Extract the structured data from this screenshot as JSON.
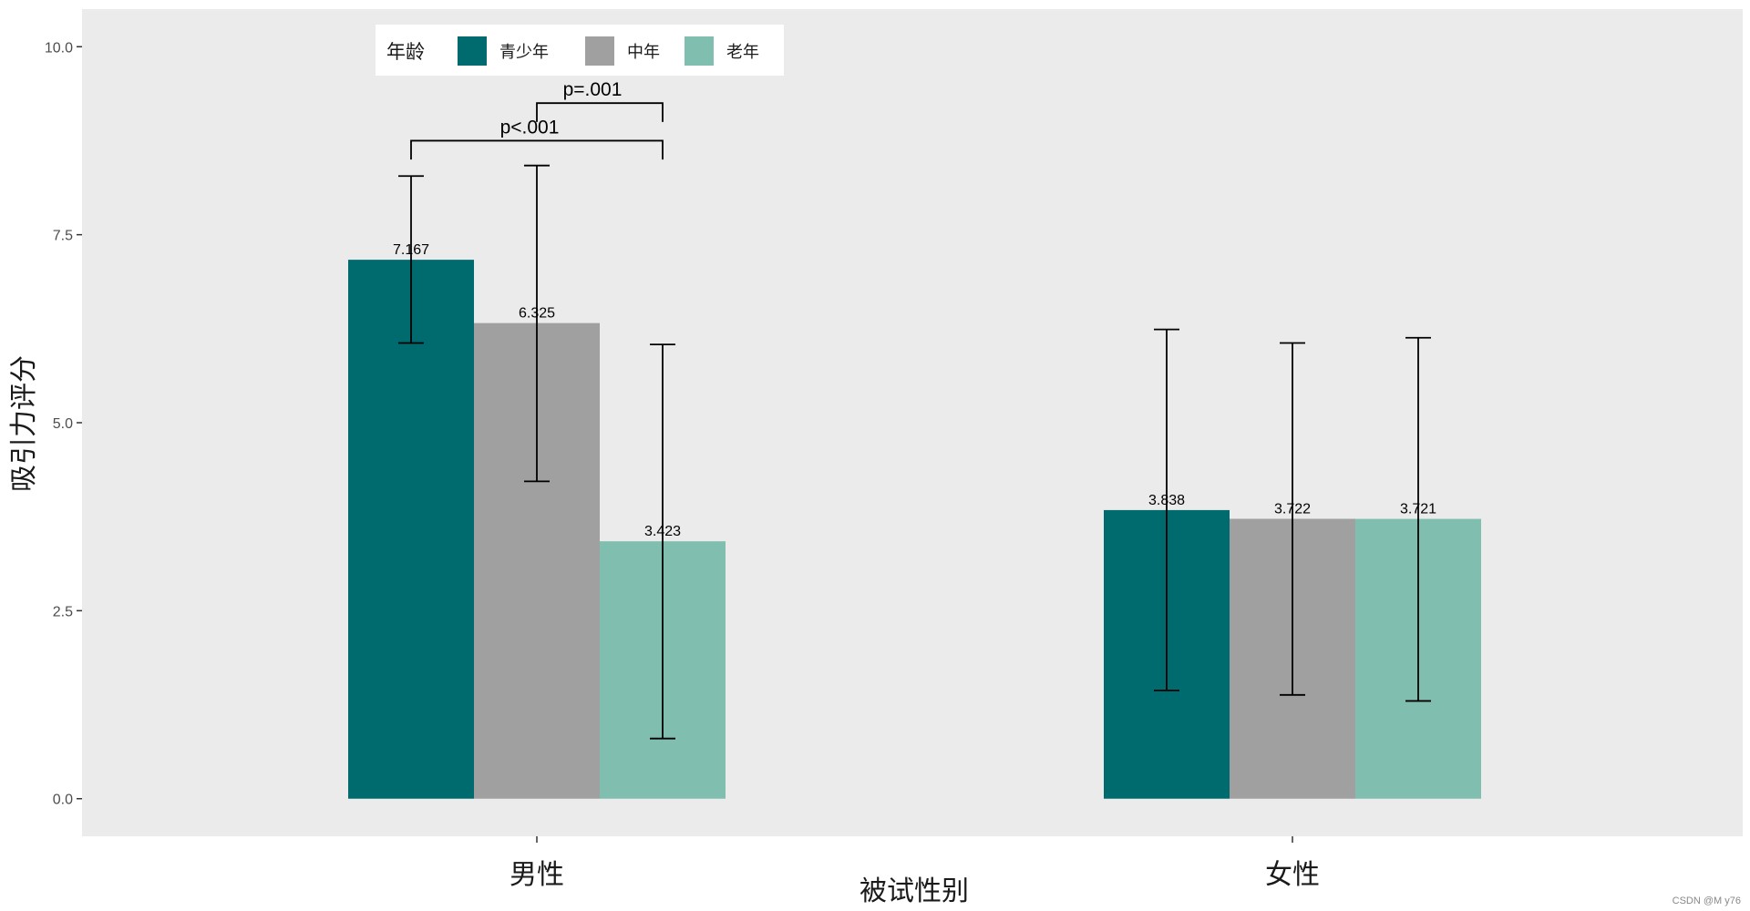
{
  "chart_data": {
    "type": "bar",
    "xlabel": "被试性别",
    "ylabel": "吸引力评分",
    "categories": [
      "男性",
      "女性"
    ],
    "ylim": [
      -0.5,
      10.5
    ],
    "yticks": [
      0.0,
      2.5,
      5.0,
      7.5,
      10.0
    ],
    "ytick_labels": [
      "0.0",
      "2.5",
      "5.0",
      "7.5",
      "10.0"
    ],
    "grid": false,
    "panel_background": "#EBEBEB",
    "legend": {
      "title": "年龄",
      "placement": "top-left",
      "entries": [
        "青少年",
        "中年",
        "老年"
      ]
    },
    "series": [
      {
        "name": "青少年",
        "color": "#006B6F",
        "values": [
          7.167,
          3.838
        ],
        "value_labels": [
          "7.167",
          "3.838"
        ],
        "err_low": [
          6.06,
          1.44
        ],
        "err_high": [
          8.28,
          6.24
        ]
      },
      {
        "name": "中年",
        "color": "#A0A0A0",
        "values": [
          6.325,
          3.722
        ],
        "value_labels": [
          "6.325",
          "3.722"
        ],
        "err_low": [
          4.22,
          1.38
        ],
        "err_high": [
          8.42,
          6.06
        ]
      },
      {
        "name": "老年",
        "color": "#80BEB0",
        "values": [
          3.423,
          3.721
        ],
        "value_labels": [
          "3.423",
          "3.721"
        ],
        "err_low": [
          0.8,
          1.3
        ],
        "err_high": [
          6.04,
          6.13
        ]
      }
    ],
    "annotations": [
      {
        "text": "p<.001",
        "category": "男性",
        "from_series": "青少年",
        "to_series": "老年",
        "y": 8.75,
        "tip_y": 8.5
      },
      {
        "text": "p=.001",
        "category": "男性",
        "from_series": "中年",
        "to_series": "老年",
        "y": 9.25,
        "tip_y": 9.0
      }
    ]
  },
  "watermark": "CSDN @M y76"
}
